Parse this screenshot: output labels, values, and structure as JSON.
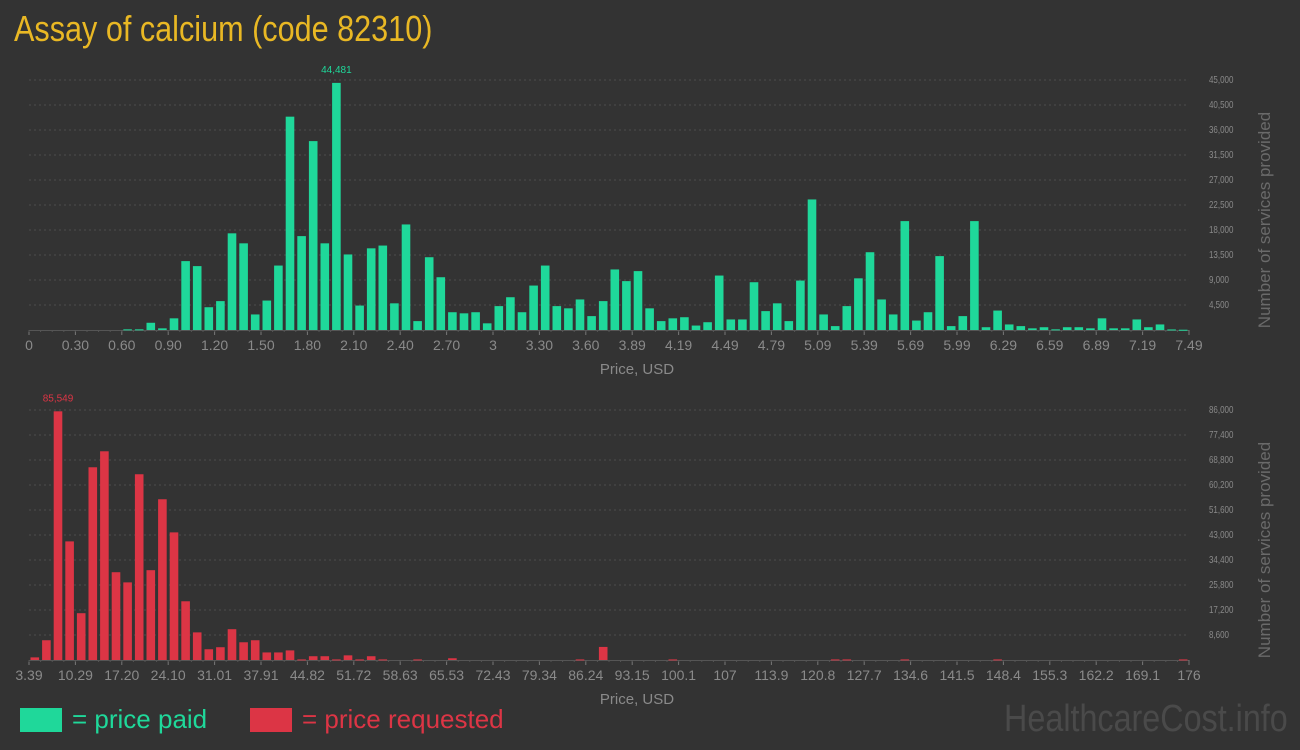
{
  "title": "Assay of calcium (code 82310)",
  "legend": {
    "paid": "= price paid",
    "requested": "= price requested"
  },
  "watermark": "HealthcareCost.info",
  "colors": {
    "paid": "#1fd89a",
    "requested": "#dc3545",
    "title": "#e9b824",
    "background": "#333333"
  },
  "chart_data": [
    {
      "type": "bar",
      "name": "price paid",
      "xlabel": "Price, USD",
      "ylabel": "Number of services provided",
      "ylim": [
        0,
        45000
      ],
      "yticks": [
        "4,500",
        "9,000",
        "13,500",
        "18,000",
        "22,500",
        "27,000",
        "31,500",
        "36,000",
        "40,500",
        "45,000"
      ],
      "ytick_values": [
        4500,
        9000,
        13500,
        18000,
        22500,
        27000,
        31500,
        36000,
        40500,
        45000
      ],
      "xticks": [
        "0",
        "0.30",
        "0.60",
        "0.90",
        "1.20",
        "1.50",
        "1.80",
        "2.10",
        "2.40",
        "2.70",
        "3",
        "3.30",
        "3.60",
        "3.89",
        "4.19",
        "4.49",
        "4.79",
        "5.09",
        "5.39",
        "5.69",
        "5.99",
        "6.29",
        "6.59",
        "6.89",
        "7.19",
        "7.49"
      ],
      "xlim": [
        0,
        7.49
      ],
      "peak_label": "44,481",
      "values": [
        0,
        0,
        0,
        0,
        0,
        0,
        0,
        0,
        120,
        120,
        1300,
        300,
        2100,
        12400,
        11500,
        4100,
        5200,
        17400,
        15600,
        2800,
        5300,
        11600,
        38400,
        16900,
        34000,
        15600,
        44481,
        13600,
        4400,
        14700,
        15200,
        4800,
        19000,
        1600,
        13100,
        9500,
        3200,
        3000,
        3200,
        1200,
        4300,
        5900,
        3200,
        8000,
        11600,
        4300,
        3900,
        5500,
        2500,
        5200,
        10900,
        8800,
        10600,
        3900,
        1600,
        2100,
        2300,
        800,
        1400,
        9800,
        1900,
        1900,
        8600,
        3400,
        4800,
        1600,
        8900,
        23500,
        2800,
        700,
        4300,
        9300,
        14000,
        5500,
        2800,
        19600,
        1700,
        3200,
        13300,
        700,
        2500,
        19600,
        500,
        3500,
        1000,
        700,
        300,
        500,
        120,
        500,
        500,
        300,
        2100,
        300,
        300,
        1900,
        500,
        1000,
        100,
        50
      ]
    },
    {
      "type": "bar",
      "name": "price requested",
      "xlabel": "Price, USD",
      "ylabel": "Number of services provided",
      "ylim": [
        0,
        86000
      ],
      "yticks": [
        "8,600",
        "17,200",
        "25,800",
        "34,400",
        "43,000",
        "51,600",
        "60,200",
        "68,800",
        "77,400",
        "86,000"
      ],
      "ytick_values": [
        8600,
        17200,
        25800,
        34400,
        43000,
        51600,
        60200,
        68800,
        77400,
        86000
      ],
      "xticks": [
        "3.39",
        "10.29",
        "17.20",
        "24.10",
        "31.01",
        "37.91",
        "44.82",
        "51.72",
        "58.63",
        "65.53",
        "72.43",
        "79.34",
        "86.24",
        "93.15",
        "100.1",
        "107",
        "113.9",
        "120.8",
        "127.7",
        "134.6",
        "141.5",
        "148.4",
        "155.3",
        "162.2",
        "169.1",
        "176"
      ],
      "xlim": [
        3.39,
        176
      ],
      "peak_label": "85,549",
      "values": [
        900,
        6800,
        85549,
        40800,
        16100,
        66300,
        71800,
        30200,
        26700,
        63900,
        30900,
        55300,
        43900,
        20200,
        9500,
        3700,
        4400,
        10600,
        6100,
        6800,
        2600,
        2600,
        3300,
        200,
        1300,
        1300,
        200,
        1600,
        200,
        1300,
        200,
        0,
        0,
        200,
        0,
        0,
        600,
        0,
        0,
        0,
        0,
        0,
        0,
        0,
        0,
        0,
        0,
        200,
        0,
        4500,
        0,
        0,
        0,
        0,
        0,
        200,
        0,
        0,
        0,
        0,
        0,
        0,
        0,
        0,
        0,
        0,
        0,
        0,
        0,
        200,
        200,
        0,
        0,
        0,
        0,
        200,
        0,
        0,
        0,
        0,
        0,
        0,
        0,
        200,
        0,
        0,
        0,
        0,
        0,
        0,
        0,
        0,
        0,
        0,
        0,
        0,
        0,
        0,
        0,
        200
      ]
    }
  ]
}
